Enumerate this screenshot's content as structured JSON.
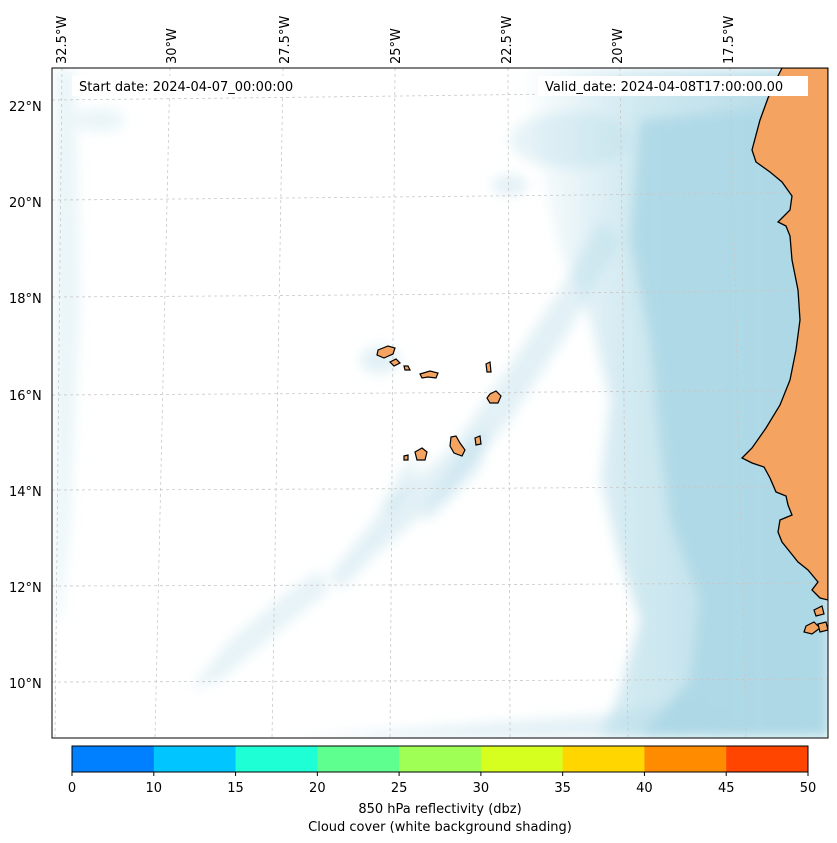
{
  "map": {
    "lon_labels": [
      "32.5°W",
      "30°W",
      "27.5°W",
      "25°W",
      "22.5°W",
      "20°W",
      "17.5°W"
    ],
    "lat_labels": [
      "22°N",
      "20°N",
      "18°N",
      "16°N",
      "14°N",
      "12°N",
      "10°N"
    ],
    "start_date": "Start date: 2024-04-07_00:00:00",
    "valid_date": "Valid_date: 2024-04-08T17:00:00.00",
    "colors": {
      "ocean": "#ffffff",
      "land": "#f4a460",
      "cloud": "#add8e6",
      "coast": "#000000",
      "grid": "#c8c8c8"
    }
  },
  "colorbar": {
    "ticks": [
      "0",
      "10",
      "15",
      "20",
      "25",
      "30",
      "35",
      "40",
      "45",
      "50"
    ],
    "colors": [
      "#007fff",
      "#00c5ff",
      "#1fffd6",
      "#5fff8f",
      "#9fff55",
      "#d6ff1f",
      "#ffd600",
      "#ff8c00",
      "#ff4500"
    ],
    "label_line1": "850 hPa reflectivity (dbz)",
    "label_line2": "Cloud cover (white background shading)"
  }
}
